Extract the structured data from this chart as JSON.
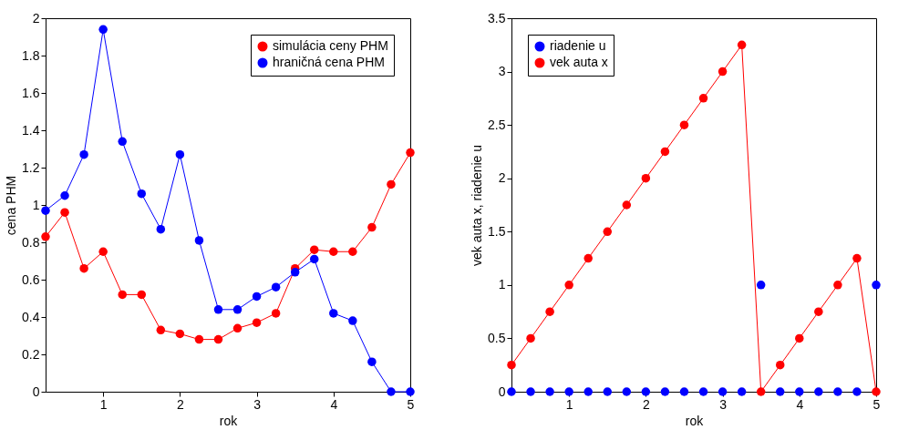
{
  "chart_data": [
    {
      "type": "line",
      "xlabel": "rok",
      "ylabel": "cena PHM",
      "x": [
        0.25,
        0.5,
        0.75,
        1,
        1.25,
        1.5,
        1.75,
        2,
        2.25,
        2.5,
        2.75,
        3,
        3.25,
        3.5,
        3.75,
        4,
        4.25,
        4.5,
        4.75,
        5
      ],
      "series": [
        {
          "name": "simulácia ceny PHM",
          "color": "#ff0000",
          "values": [
            0.83,
            0.96,
            0.66,
            0.75,
            0.52,
            0.52,
            0.33,
            0.31,
            0.28,
            0.28,
            0.34,
            0.37,
            0.42,
            0.66,
            0.76,
            0.75,
            0.75,
            0.88,
            1.11,
            1.28
          ]
        },
        {
          "name": "hraničná cena PHM",
          "color": "#0000ff",
          "values": [
            0.97,
            1.05,
            1.27,
            1.94,
            1.34,
            1.06,
            0.87,
            1.27,
            0.81,
            0.44,
            0.44,
            0.51,
            0.56,
            0.64,
            0.71,
            0.42,
            0.38,
            0.16,
            0,
            0
          ]
        }
      ],
      "xlim": [
        0.25,
        5
      ],
      "xticks": [
        1,
        2,
        3,
        4,
        5
      ],
      "ylim": [
        0,
        2
      ],
      "yticks": [
        0,
        0.2,
        0.4,
        0.6,
        0.8,
        1,
        1.2,
        1.4,
        1.6,
        1.8,
        2
      ],
      "grid": false,
      "legend": "top right",
      "marker": "circle",
      "line_style": "solid"
    },
    {
      "type": "line",
      "xlabel": "rok",
      "ylabel": "vek auta x, riadenie u",
      "x": [
        0.25,
        0.5,
        0.75,
        1,
        1.25,
        1.5,
        1.75,
        2,
        2.25,
        2.5,
        2.75,
        3,
        3.25,
        3.5,
        3.75,
        4,
        4.25,
        4.5,
        4.75,
        5
      ],
      "series": [
        {
          "name": "riadenie u",
          "type": "scatter",
          "color": "#0000ff",
          "values": [
            0,
            0,
            0,
            0,
            0,
            0,
            0,
            0,
            0,
            0,
            0,
            0,
            0,
            1,
            0,
            0,
            0,
            0,
            0,
            1
          ]
        },
        {
          "name": "vek auta x",
          "color": "#ff0000",
          "values": [
            0.25,
            0.5,
            0.75,
            1,
            1.25,
            1.5,
            1.75,
            2,
            2.25,
            2.5,
            2.75,
            3,
            3.25,
            0,
            0.25,
            0.5,
            0.75,
            1,
            1.25,
            0
          ]
        }
      ],
      "xlim": [
        0.25,
        5
      ],
      "xticks": [
        1,
        2,
        3,
        4,
        5
      ],
      "ylim": [
        0,
        3.5
      ],
      "yticks": [
        0,
        0.5,
        1,
        1.5,
        2,
        2.5,
        3,
        3.5
      ],
      "grid": false,
      "legend": "top left",
      "marker": "circle",
      "line_style": "solid"
    }
  ]
}
